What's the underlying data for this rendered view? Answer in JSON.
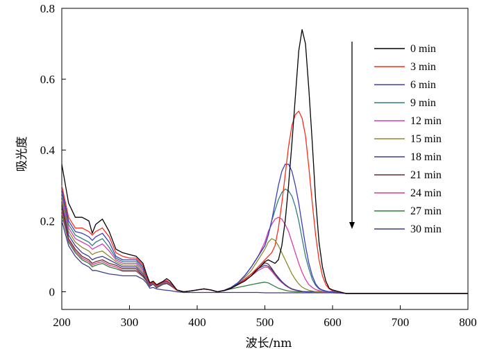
{
  "chart_data": {
    "type": "line",
    "title": "",
    "xlabel": "波长/nm",
    "ylabel": "吸光度",
    "xlim": [
      200,
      800
    ],
    "ylim": [
      -0.05,
      0.8
    ],
    "xticks": [
      200,
      300,
      400,
      500,
      600,
      700,
      800
    ],
    "xtick_labels": [
      "200",
      "300",
      "400",
      "500",
      "600",
      "700",
      "800"
    ],
    "yticks": [
      0,
      0.2,
      0.4,
      0.6,
      0.8
    ],
    "ytick_labels": [
      "0",
      "0.2",
      "0.4",
      "0.6",
      "0.8"
    ],
    "grid": false,
    "legend_position": "top-right",
    "annotation": "arrow pointing down (decreasing absorbance over time)",
    "x": [
      200,
      210,
      220,
      230,
      240,
      245,
      250,
      260,
      270,
      280,
      290,
      300,
      310,
      320,
      325,
      330,
      335,
      340,
      350,
      355,
      360,
      370,
      380,
      390,
      400,
      410,
      420,
      430,
      440,
      450,
      460,
      470,
      480,
      490,
      500,
      505,
      510,
      515,
      520,
      525,
      530,
      535,
      540,
      545,
      550,
      555,
      560,
      565,
      570,
      575,
      580,
      585,
      590,
      595,
      600,
      610,
      620,
      650,
      700,
      750,
      800
    ],
    "series": [
      {
        "name": "0 min",
        "color": "#000000",
        "values": [
          0.36,
          0.25,
          0.21,
          0.21,
          0.2,
          0.165,
          0.19,
          0.205,
          0.17,
          0.12,
          0.11,
          0.105,
          0.1,
          0.08,
          0.05,
          0.025,
          0.03,
          0.02,
          0.03,
          0.037,
          0.03,
          0.005,
          0.0,
          0.002,
          0.005,
          0.008,
          0.005,
          0.0,
          0.003,
          0.01,
          0.02,
          0.03,
          0.045,
          0.065,
          0.085,
          0.09,
          0.085,
          0.08,
          0.09,
          0.13,
          0.2,
          0.3,
          0.42,
          0.55,
          0.68,
          0.74,
          0.7,
          0.57,
          0.42,
          0.26,
          0.14,
          0.07,
          0.03,
          0.01,
          0.005,
          0.0,
          -0.005,
          -0.005,
          -0.005,
          -0.005,
          -0.005
        ]
      },
      {
        "name": "3 min",
        "color": "#ff2a1a",
        "values": [
          0.3,
          0.21,
          0.18,
          0.18,
          0.17,
          0.16,
          0.17,
          0.18,
          0.155,
          0.11,
          0.1,
          0.095,
          0.095,
          0.075,
          0.045,
          0.022,
          0.028,
          0.018,
          0.028,
          0.032,
          0.025,
          0.004,
          0.0,
          0.002,
          0.005,
          0.008,
          0.005,
          0.0,
          0.003,
          0.01,
          0.02,
          0.035,
          0.05,
          0.07,
          0.09,
          0.1,
          0.11,
          0.13,
          0.18,
          0.25,
          0.33,
          0.41,
          0.47,
          0.5,
          0.51,
          0.49,
          0.44,
          0.35,
          0.25,
          0.16,
          0.09,
          0.045,
          0.02,
          0.008,
          0.003,
          0.0,
          -0.005,
          -0.005,
          -0.005,
          -0.005,
          -0.005
        ]
      },
      {
        "name": "6 min",
        "color": "#3d3dbd",
        "values": [
          0.29,
          0.2,
          0.17,
          0.165,
          0.155,
          0.145,
          0.155,
          0.165,
          0.14,
          0.1,
          0.09,
          0.09,
          0.09,
          0.07,
          0.042,
          0.02,
          0.027,
          0.017,
          0.027,
          0.03,
          0.024,
          0.004,
          0.0,
          0.002,
          0.005,
          0.008,
          0.005,
          0.0,
          0.004,
          0.012,
          0.025,
          0.045,
          0.07,
          0.1,
          0.13,
          0.16,
          0.2,
          0.25,
          0.3,
          0.34,
          0.36,
          0.36,
          0.34,
          0.3,
          0.25,
          0.19,
          0.13,
          0.08,
          0.045,
          0.022,
          0.01,
          0.005,
          0.002,
          0.0,
          0.0,
          -0.003,
          -0.005,
          -0.005,
          -0.005,
          -0.005,
          -0.005
        ]
      },
      {
        "name": "9 min",
        "color": "#2f7d7d",
        "values": [
          0.28,
          0.19,
          0.16,
          0.15,
          0.14,
          0.13,
          0.14,
          0.15,
          0.125,
          0.095,
          0.085,
          0.085,
          0.085,
          0.065,
          0.04,
          0.02,
          0.026,
          0.016,
          0.026,
          0.03,
          0.023,
          0.004,
          0.0,
          0.002,
          0.005,
          0.008,
          0.005,
          0.0,
          0.004,
          0.012,
          0.025,
          0.045,
          0.07,
          0.1,
          0.13,
          0.16,
          0.2,
          0.23,
          0.26,
          0.28,
          0.29,
          0.285,
          0.27,
          0.24,
          0.2,
          0.15,
          0.1,
          0.065,
          0.035,
          0.018,
          0.008,
          0.004,
          0.001,
          0.0,
          0.0,
          -0.003,
          -0.005,
          -0.005,
          -0.005,
          -0.005,
          -0.005
        ]
      },
      {
        "name": "12 min",
        "color": "#d63bb3",
        "values": [
          0.27,
          0.18,
          0.15,
          0.14,
          0.13,
          0.12,
          0.125,
          0.135,
          0.115,
          0.09,
          0.08,
          0.08,
          0.08,
          0.06,
          0.038,
          0.019,
          0.025,
          0.015,
          0.025,
          0.028,
          0.022,
          0.004,
          0.0,
          0.002,
          0.005,
          0.008,
          0.005,
          0.0,
          0.004,
          0.012,
          0.025,
          0.045,
          0.07,
          0.1,
          0.14,
          0.17,
          0.19,
          0.205,
          0.21,
          0.205,
          0.19,
          0.17,
          0.14,
          0.11,
          0.08,
          0.055,
          0.035,
          0.02,
          0.012,
          0.006,
          0.003,
          0.001,
          0.0,
          0.0,
          0.0,
          -0.003,
          -0.005,
          -0.005,
          -0.005,
          -0.005,
          -0.005
        ]
      },
      {
        "name": "15 min",
        "color": "#8a8a2e",
        "values": [
          0.26,
          0.17,
          0.14,
          0.125,
          0.115,
          0.105,
          0.11,
          0.115,
          0.1,
          0.085,
          0.075,
          0.075,
          0.075,
          0.055,
          0.036,
          0.018,
          0.024,
          0.014,
          0.024,
          0.026,
          0.021,
          0.004,
          0.0,
          0.002,
          0.005,
          0.008,
          0.005,
          0.0,
          0.004,
          0.012,
          0.025,
          0.04,
          0.06,
          0.09,
          0.12,
          0.14,
          0.15,
          0.145,
          0.13,
          0.11,
          0.09,
          0.07,
          0.05,
          0.035,
          0.022,
          0.013,
          0.008,
          0.004,
          0.002,
          0.0,
          0.0,
          0.0,
          0.0,
          0.0,
          0.0,
          -0.003,
          -0.005,
          -0.005,
          -0.005,
          -0.005,
          -0.005
        ]
      },
      {
        "name": "18 min",
        "color": "#3b3b96",
        "values": [
          0.25,
          0.16,
          0.13,
          0.11,
          0.1,
          0.09,
          0.095,
          0.1,
          0.09,
          0.08,
          0.07,
          0.07,
          0.07,
          0.05,
          0.034,
          0.017,
          0.023,
          0.013,
          0.023,
          0.025,
          0.02,
          0.004,
          0.0,
          0.002,
          0.005,
          0.008,
          0.005,
          0.0,
          0.004,
          0.012,
          0.022,
          0.035,
          0.05,
          0.065,
          0.075,
          0.072,
          0.062,
          0.05,
          0.038,
          0.028,
          0.02,
          0.013,
          0.008,
          0.005,
          0.003,
          0.001,
          0.0,
          0.0,
          0.0,
          0.0,
          0.0,
          0.0,
          0.0,
          0.0,
          0.0,
          -0.003,
          -0.005,
          -0.005,
          -0.005,
          -0.005,
          -0.005
        ]
      },
      {
        "name": "21 min",
        "color": "#6b2a2a",
        "values": [
          0.24,
          0.15,
          0.12,
          0.1,
          0.09,
          0.08,
          0.085,
          0.09,
          0.08,
          0.075,
          0.065,
          0.065,
          0.065,
          0.045,
          0.032,
          0.016,
          0.022,
          0.012,
          0.022,
          0.024,
          0.019,
          0.004,
          0.0,
          0.002,
          0.005,
          0.008,
          0.005,
          0.0,
          0.004,
          0.012,
          0.022,
          0.035,
          0.05,
          0.065,
          0.082,
          0.078,
          0.066,
          0.052,
          0.04,
          0.029,
          0.02,
          0.013,
          0.008,
          0.005,
          0.003,
          0.001,
          0.0,
          0.0,
          0.0,
          0.0,
          0.0,
          0.0,
          0.0,
          0.0,
          0.0,
          -0.003,
          -0.005,
          -0.005,
          -0.005,
          -0.005,
          -0.005
        ]
      },
      {
        "name": "24 min",
        "color": "#d93c8a",
        "values": [
          0.23,
          0.145,
          0.115,
          0.095,
          0.085,
          0.075,
          0.08,
          0.085,
          0.075,
          0.07,
          0.06,
          0.06,
          0.06,
          0.043,
          0.031,
          0.016,
          0.022,
          0.012,
          0.022,
          0.024,
          0.019,
          0.004,
          0.0,
          0.002,
          0.005,
          0.008,
          0.005,
          0.0,
          0.004,
          0.012,
          0.02,
          0.032,
          0.045,
          0.06,
          0.07,
          0.068,
          0.058,
          0.046,
          0.035,
          0.026,
          0.018,
          0.012,
          0.007,
          0.004,
          0.002,
          0.001,
          0.0,
          0.0,
          0.0,
          0.0,
          0.0,
          0.0,
          0.0,
          0.0,
          0.0,
          -0.003,
          -0.005,
          -0.005,
          -0.005,
          -0.005,
          -0.005
        ]
      },
      {
        "name": "27 min",
        "color": "#2e7d3b",
        "values": [
          0.22,
          0.14,
          0.11,
          0.09,
          0.08,
          0.07,
          0.075,
          0.08,
          0.07,
          0.065,
          0.058,
          0.058,
          0.058,
          0.042,
          0.03,
          0.015,
          0.021,
          0.011,
          0.021,
          0.023,
          0.018,
          0.004,
          0.0,
          0.002,
          0.005,
          0.008,
          0.005,
          0.0,
          0.003,
          0.008,
          0.012,
          0.016,
          0.02,
          0.024,
          0.027,
          0.025,
          0.02,
          0.015,
          0.01,
          0.007,
          0.004,
          0.002,
          0.001,
          0.0,
          0.0,
          0.0,
          0.0,
          0.0,
          0.0,
          0.0,
          0.0,
          0.0,
          0.0,
          0.0,
          0.0,
          -0.003,
          -0.005,
          -0.005,
          -0.005,
          -0.005,
          -0.005
        ]
      },
      {
        "name": "30 min",
        "color": "#3c3c8c",
        "values": [
          0.2,
          0.13,
          0.1,
          0.08,
          0.07,
          0.06,
          0.06,
          0.055,
          0.05,
          0.048,
          0.045,
          0.045,
          0.045,
          0.035,
          0.025,
          0.01,
          0.012,
          0.008,
          0.005,
          0.004,
          0.003,
          0.0,
          -0.002,
          -0.002,
          -0.002,
          -0.002,
          -0.002,
          -0.002,
          -0.002,
          -0.002,
          -0.002,
          -0.002,
          -0.002,
          -0.002,
          -0.003,
          -0.003,
          -0.003,
          -0.003,
          -0.003,
          -0.003,
          -0.003,
          -0.003,
          -0.003,
          -0.003,
          -0.003,
          -0.003,
          -0.003,
          -0.003,
          -0.003,
          -0.003,
          -0.003,
          -0.003,
          -0.003,
          -0.003,
          -0.003,
          -0.004,
          -0.005,
          -0.005,
          -0.005,
          -0.005,
          -0.005
        ]
      }
    ]
  }
}
